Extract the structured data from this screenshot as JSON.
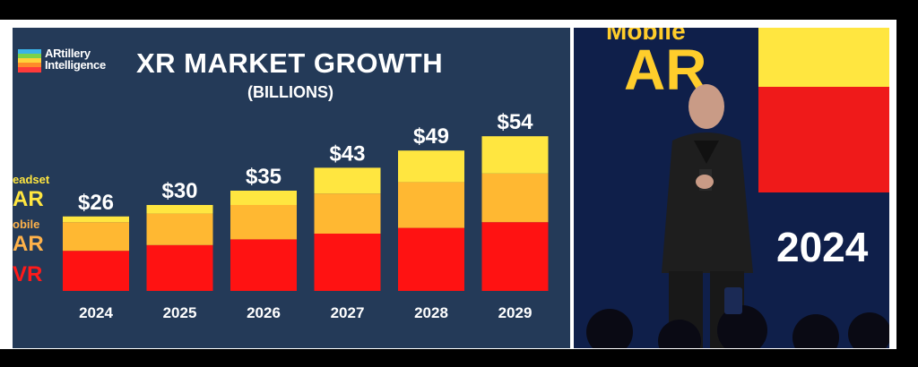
{
  "colors": {
    "slide_bg": "#243a58",
    "headset_ar": "#ffe640",
    "mobile_ar": "#ffb832",
    "vr": "#ff1212"
  },
  "logo": {
    "line1": "ARtillery",
    "line2": "Intelligence"
  },
  "legend": {
    "headset_line1": "eadset",
    "headset_line2": "AR",
    "mobile_line1": "obile",
    "mobile_line2": "AR",
    "vr": "VR"
  },
  "stage": {
    "word1": "Mobile",
    "word2": "AR",
    "year": "2024"
  },
  "chart_data": {
    "type": "bar",
    "stacked": true,
    "title": "XR MARKET GROWTH",
    "subtitle": "(BILLIONS)",
    "categories": [
      "2024",
      "2025",
      "2026",
      "2027",
      "2028",
      "2029"
    ],
    "totals_labels": [
      "$26",
      "$30",
      "$35",
      "$43",
      "$49",
      "$54"
    ],
    "totals": [
      26,
      30,
      35,
      43,
      49,
      54
    ],
    "series": [
      {
        "name": "VR",
        "color": "#ff1212",
        "values": [
          14,
          16,
          18,
          20,
          22,
          24
        ]
      },
      {
        "name": "Mobile AR",
        "color": "#ffb832",
        "values": [
          10,
          11,
          12,
          14,
          16,
          17
        ]
      },
      {
        "name": "Headset AR",
        "color": "#ffe640",
        "values": [
          2,
          3,
          5,
          9,
          11,
          13
        ]
      }
    ]
  }
}
